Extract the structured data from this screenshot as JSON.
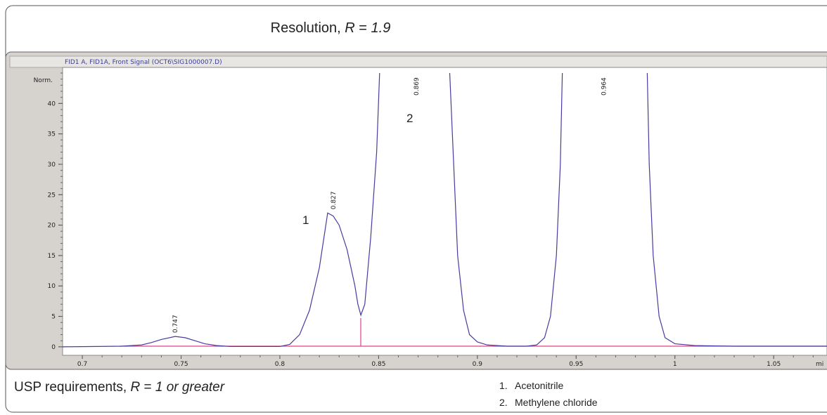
{
  "chart_data": {
    "type": "line",
    "title_parts": [
      "Resolution, ",
      "R",
      " = ",
      "1.9"
    ],
    "signal_header": "FID1 A, FID1A, Front Signal (OCT6\\SIG1000007.D)",
    "y_label": "Norm.",
    "x_label": "mi",
    "xlim": [
      0.69,
      1.077
    ],
    "ylim": [
      -1.4,
      45
    ],
    "xticks": [
      0.7,
      0.75,
      0.8,
      0.85,
      0.9,
      0.95,
      1,
      1.05
    ],
    "yticks": [
      0,
      5,
      10,
      15,
      20,
      25,
      30,
      35,
      40
    ],
    "x": [
      0.69,
      0.72,
      0.73,
      0.735,
      0.74,
      0.747,
      0.752,
      0.757,
      0.762,
      0.768,
      0.775,
      0.8,
      0.805,
      0.81,
      0.815,
      0.82,
      0.8242,
      0.827,
      0.83,
      0.834,
      0.838,
      0.8395,
      0.841,
      0.843,
      0.846,
      0.849,
      0.8505,
      0.868,
      0.886,
      0.888,
      0.89,
      0.893,
      0.896,
      0.9,
      0.905,
      0.915,
      0.925,
      0.93,
      0.934,
      0.937,
      0.94,
      0.942,
      0.943,
      0.965,
      0.986,
      0.987,
      0.989,
      0.992,
      0.995,
      1.0,
      1.01,
      1.03,
      1.077
    ],
    "series": [
      {
        "name": "FID1 A",
        "color": "#4a3aa0",
        "values": [
          0,
          0.1,
          0.3,
          0.7,
          1.2,
          1.7,
          1.5,
          1.0,
          0.5,
          0.2,
          0.05,
          0.05,
          0.4,
          2,
          6,
          13,
          22,
          21.5,
          20,
          16,
          10,
          7,
          5.2,
          7,
          18,
          32,
          45,
          null,
          45,
          30,
          15,
          6,
          2,
          0.8,
          0.3,
          0.1,
          0.1,
          0.3,
          1.5,
          5,
          15,
          30,
          45,
          null,
          45,
          30,
          15,
          5,
          1.5,
          0.5,
          0.2,
          0.1,
          0.1
        ]
      }
    ],
    "peak_labels": [
      0.747,
      0.827,
      0.869,
      0.964
    ],
    "compound_numbers": [
      "1",
      "2"
    ],
    "footer_parts": [
      "USP requirements, ",
      "R",
      " = ",
      "1 or greater"
    ],
    "legend_items": [
      {
        "number": "1.",
        "name": "Acetonitrile"
      },
      {
        "number": "2.",
        "name": "Methylene chloride"
      }
    ]
  }
}
